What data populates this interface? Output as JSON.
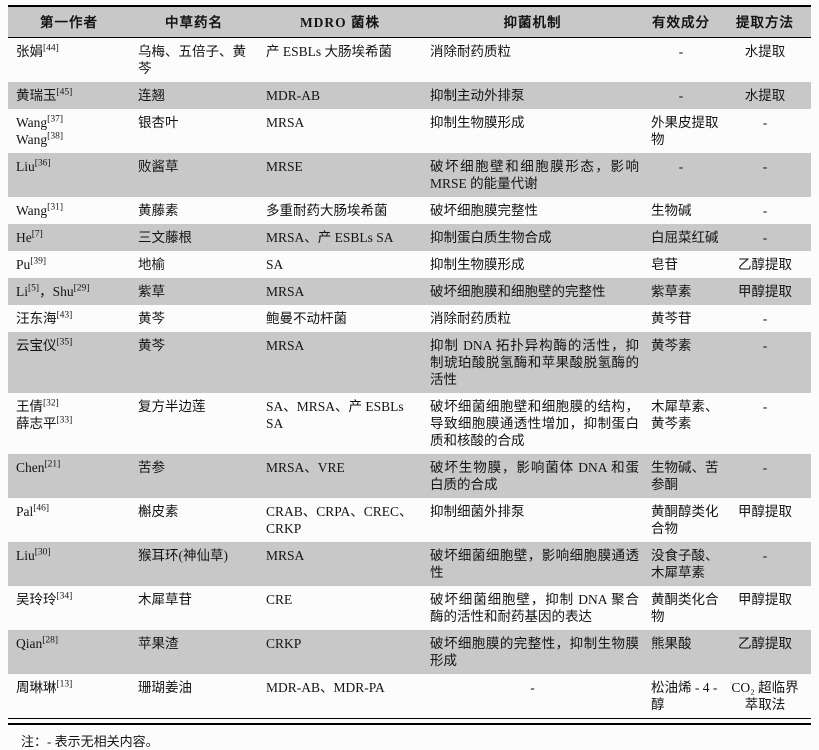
{
  "colors": {
    "header_bg": "#c8c8c8",
    "stripe_bg": "#c8c8c8",
    "border": "#000000",
    "text": "#141414"
  },
  "table": {
    "columns": [
      {
        "key": "author",
        "label": "第一作者"
      },
      {
        "key": "herb",
        "label": "中草药名"
      },
      {
        "key": "strain",
        "label": "MDRO 菌株"
      },
      {
        "key": "mechanism",
        "label": "抑菌机制"
      },
      {
        "key": "ingredient",
        "label": "有效成分"
      },
      {
        "key": "extraction",
        "label": "提取方法"
      }
    ],
    "rows": [
      {
        "author": "张娟[44]",
        "herb": "乌梅、五倍子、黄芩",
        "strain": "产 ESBLs 大肠埃希菌",
        "mechanism": "消除耐药质粒",
        "ingredient": "-",
        "extraction": "水提取"
      },
      {
        "author": "黄瑞玉[45]",
        "herb": "连翘",
        "strain": "MDR-AB",
        "mechanism": "抑制主动外排泵",
        "ingredient": "-",
        "extraction": "水提取"
      },
      {
        "author": "Wang[37]\nWang[38]",
        "herb": "银杏叶",
        "strain": "MRSA",
        "mechanism": "抑制生物膜形成",
        "ingredient": "外果皮提取物",
        "extraction": "-"
      },
      {
        "author": "Liu[36]",
        "herb": "败酱草",
        "strain": "MRSE",
        "mechanism": "破坏细胞壁和细胞膜形态，影响 MRSE 的能量代谢",
        "ingredient": "-",
        "extraction": "-"
      },
      {
        "author": "Wang[31]",
        "herb": "黄藤素",
        "strain": "多重耐药大肠埃希菌",
        "mechanism": "破坏细胞膜完整性",
        "ingredient": "生物碱",
        "extraction": "-"
      },
      {
        "author": "He[7]",
        "herb": "三文藤根",
        "strain": "MRSA、产 ESBLs SA",
        "mechanism": "抑制蛋白质生物合成",
        "ingredient": "白屈菜红碱",
        "extraction": "-"
      },
      {
        "author": "Pu[39]",
        "herb": "地榆",
        "strain": "SA",
        "mechanism": "抑制生物膜形成",
        "ingredient": "皂苷",
        "extraction": "乙醇提取"
      },
      {
        "author": "Li[5]，Shu[29]",
        "herb": "紫草",
        "strain": "MRSA",
        "mechanism": "破坏细胞膜和细胞壁的完整性",
        "ingredient": "紫草素",
        "extraction": "甲醇提取"
      },
      {
        "author": "汪东海[43]",
        "herb": "黄芩",
        "strain": "鲍曼不动杆菌",
        "mechanism": "消除耐药质粒",
        "ingredient": "黄芩苷",
        "extraction": "-"
      },
      {
        "author": "云宝仪[35]",
        "herb": "黄芩",
        "strain": "MRSA",
        "mechanism": "抑制 DNA 拓扑异构酶的活性，抑制琥珀酸脱氢酶和苹果酸脱氢酶的活性",
        "ingredient": "黄芩素",
        "extraction": "-"
      },
      {
        "author": "王倩[32]\n薛志平[33]",
        "herb": "复方半边莲",
        "strain": "SA、MRSA、产 ESBLs SA",
        "mechanism": "破坏细菌细胞壁和细胞膜的结构，导致细胞膜通透性增加，抑制蛋白质和核酸的合成",
        "ingredient": "木犀草素、黄芩素",
        "extraction": "-"
      },
      {
        "author": "Chen[21]",
        "herb": "苦参",
        "strain": "MRSA、VRE",
        "mechanism": "破坏生物膜，影响菌体 DNA 和蛋白质的合成",
        "ingredient": "生物碱、苦参酮",
        "extraction": "-"
      },
      {
        "author": "Pal[46]",
        "herb": "槲皮素",
        "strain": "CRAB、CRPA、CREC、CRKP",
        "mechanism": "抑制细菌外排泵",
        "ingredient": "黄酮醇类化合物",
        "extraction": "甲醇提取"
      },
      {
        "author": "Liu[30]",
        "herb": "猴耳环(神仙草)",
        "strain": "MRSA",
        "mechanism": "破坏细菌细胞壁，影响细胞膜通透性",
        "ingredient": "没食子酸、木犀草素",
        "extraction": "-"
      },
      {
        "author": "吴玲玲[34]",
        "herb": "木犀草苷",
        "strain": "CRE",
        "mechanism": "破坏细菌细胞壁，抑制 DNA 聚合酶的活性和耐药基因的表达",
        "ingredient": "黄酮类化合物",
        "extraction": "甲醇提取"
      },
      {
        "author": "Qian[28]",
        "herb": "苹果渣",
        "strain": "CRKP",
        "mechanism": "破坏细胞膜的完整性，抑制生物膜形成",
        "ingredient": "熊果酸",
        "extraction": "乙醇提取"
      },
      {
        "author": "周琳琳[13]",
        "herb": "珊瑚姜油",
        "strain": "MDR-AB、MDR-PA",
        "mechanism": "-",
        "ingredient": "松油烯 - 4 - 醇",
        "extraction": "CO₂ 超临界萃取法"
      }
    ],
    "note": "注：- 表示无相关内容。"
  }
}
